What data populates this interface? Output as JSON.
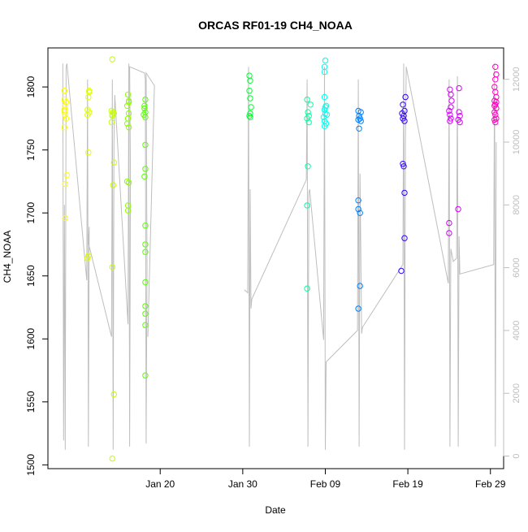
{
  "chart_data": {
    "type": "scatter",
    "title": "ORCAS RF01-19 CH4_NOAA",
    "xlabel": "Date",
    "ylabel": "CH4_NOAA",
    "x_unit": "days since Jan 20",
    "xlim": [
      -13.6,
      41.6
    ],
    "ylim": [
      1497,
      1831
    ],
    "x_ticks": [
      {
        "value": 0,
        "label": "Jan 20"
      },
      {
        "value": 10,
        "label": "Jan 30"
      },
      {
        "value": 20,
        "label": "Feb 09"
      },
      {
        "value": 30,
        "label": "Feb 19"
      },
      {
        "value": 40,
        "label": "Feb 29"
      }
    ],
    "y_ticks": [
      1500,
      1550,
      1600,
      1650,
      1700,
      1750,
      1800
    ],
    "right_axis": {
      "range": [
        -400,
        13000
      ],
      "ticks": [
        0,
        2000,
        4000,
        6000,
        8000,
        10000,
        12000
      ],
      "color": "#bebebe"
    },
    "grid": false,
    "series": [
      {
        "color": "#ffff00",
        "points": [
          [
            -11.6,
            1797
          ],
          [
            -11.6,
            1790
          ],
          [
            -11.5,
            1785
          ],
          [
            -11.6,
            1780
          ],
          [
            -11.5,
            1778
          ],
          [
            -11.4,
            1775
          ],
          [
            -11.6,
            1768
          ],
          [
            -11.5,
            1723
          ],
          [
            -11.3,
            1730
          ],
          [
            -11.5,
            1696
          ],
          [
            -11.6,
            1782
          ],
          [
            -11.4,
            1788
          ]
        ]
      },
      {
        "color": "#dfff00",
        "points": [
          [
            -8.6,
            1797
          ],
          [
            -8.7,
            1792
          ],
          [
            -8.8,
            1782
          ],
          [
            -8.6,
            1780
          ],
          [
            -8.8,
            1778
          ],
          [
            -8.7,
            1748
          ],
          [
            -8.7,
            1666
          ],
          [
            -8.8,
            1664
          ],
          [
            -8.6,
            1796
          ]
        ]
      },
      {
        "color": "#c5ff00",
        "points": [
          [
            -5.8,
            1822
          ],
          [
            -5.9,
            1781
          ],
          [
            -5.7,
            1780
          ],
          [
            -5.8,
            1778
          ],
          [
            -5.8,
            1777
          ],
          [
            -5.9,
            1772
          ],
          [
            -5.6,
            1740
          ],
          [
            -5.7,
            1722
          ],
          [
            -5.8,
            1657
          ],
          [
            -5.6,
            1556
          ],
          [
            -5.8,
            1505
          ],
          [
            -5.6,
            1779
          ]
        ]
      },
      {
        "color": "#8fff00",
        "points": [
          [
            -3.9,
            1794
          ],
          [
            -3.8,
            1789
          ],
          [
            -4.0,
            1785
          ],
          [
            -3.8,
            1779
          ],
          [
            -3.9,
            1775
          ],
          [
            -4.0,
            1771
          ],
          [
            -3.8,
            1768
          ],
          [
            -3.8,
            1724
          ],
          [
            -4.0,
            1725
          ],
          [
            -3.9,
            1706
          ],
          [
            -3.9,
            1702
          ],
          [
            -3.8,
            1788
          ]
        ]
      },
      {
        "color": "#59ff00",
        "points": [
          [
            -1.8,
            1790
          ],
          [
            -1.9,
            1785
          ],
          [
            -1.8,
            1780
          ],
          [
            -2.0,
            1778
          ],
          [
            -1.8,
            1776
          ],
          [
            -1.8,
            1754
          ],
          [
            -1.8,
            1735
          ],
          [
            -1.9,
            1729
          ],
          [
            -1.8,
            1690
          ],
          [
            -1.8,
            1675
          ],
          [
            -1.8,
            1669
          ],
          [
            -1.8,
            1645
          ],
          [
            -1.8,
            1626
          ],
          [
            -1.8,
            1620
          ],
          [
            -1.8,
            1611
          ],
          [
            -1.8,
            1571
          ],
          [
            -1.9,
            1783
          ]
        ]
      },
      {
        "color": "#00ff2e",
        "points": [
          [
            10.8,
            1809
          ],
          [
            10.9,
            1805
          ],
          [
            10.8,
            1797
          ],
          [
            10.9,
            1791
          ],
          [
            11.0,
            1784
          ],
          [
            10.9,
            1779
          ],
          [
            10.8,
            1777
          ],
          [
            10.9,
            1776
          ]
        ]
      },
      {
        "color": "#00ffa0",
        "points": [
          [
            17.8,
            1790
          ],
          [
            18.2,
            1786
          ],
          [
            17.9,
            1780
          ],
          [
            18.0,
            1777
          ],
          [
            17.8,
            1775
          ],
          [
            18.0,
            1772
          ],
          [
            17.9,
            1737
          ],
          [
            17.8,
            1706
          ],
          [
            17.8,
            1640
          ]
        ]
      },
      {
        "color": "#00ffef",
        "points": [
          [
            20.0,
            1821
          ],
          [
            19.9,
            1816
          ],
          [
            19.9,
            1812
          ],
          [
            19.9,
            1792
          ],
          [
            20.1,
            1785
          ],
          [
            19.9,
            1782
          ],
          [
            20.0,
            1779
          ],
          [
            19.8,
            1776
          ],
          [
            19.9,
            1773
          ],
          [
            20.1,
            1771
          ],
          [
            19.9,
            1769
          ],
          [
            20.0,
            1784
          ],
          [
            20.2,
            1778
          ]
        ]
      },
      {
        "color": "#0080ff",
        "points": [
          [
            24.0,
            1781
          ],
          [
            24.3,
            1780
          ],
          [
            24.1,
            1777
          ],
          [
            24.2,
            1775
          ],
          [
            24.0,
            1774
          ],
          [
            24.3,
            1773
          ],
          [
            24.1,
            1767
          ],
          [
            24.0,
            1710
          ],
          [
            24.0,
            1703
          ],
          [
            24.2,
            1700
          ],
          [
            24.2,
            1642
          ],
          [
            24.0,
            1624
          ]
        ]
      },
      {
        "color": "#3300ff",
        "points": [
          [
            29.7,
            1792
          ],
          [
            29.4,
            1786
          ],
          [
            29.6,
            1781
          ],
          [
            29.3,
            1779
          ],
          [
            29.5,
            1777
          ],
          [
            29.4,
            1775
          ],
          [
            29.6,
            1773
          ],
          [
            29.4,
            1739
          ],
          [
            29.5,
            1737
          ],
          [
            29.6,
            1716
          ],
          [
            29.6,
            1680
          ],
          [
            29.2,
            1654
          ]
        ]
      },
      {
        "color": "#d900ff",
        "points": [
          [
            35.1,
            1798
          ],
          [
            35.2,
            1794
          ],
          [
            35.3,
            1789
          ],
          [
            35.2,
            1784
          ],
          [
            35.0,
            1781
          ],
          [
            35.1,
            1778
          ],
          [
            35.2,
            1775
          ],
          [
            35.1,
            1773
          ],
          [
            36.2,
            1799
          ],
          [
            36.2,
            1780
          ],
          [
            36.3,
            1777
          ],
          [
            36.1,
            1774
          ],
          [
            36.3,
            1772
          ],
          [
            35.0,
            1692
          ],
          [
            35.0,
            1684
          ],
          [
            36.1,
            1703
          ]
        ]
      },
      {
        "color": "#ff00bf",
        "points": [
          [
            40.6,
            1816
          ],
          [
            40.7,
            1810
          ],
          [
            40.6,
            1806
          ],
          [
            40.5,
            1800
          ],
          [
            40.6,
            1796
          ],
          [
            40.7,
            1792
          ],
          [
            40.5,
            1789
          ],
          [
            40.6,
            1786
          ],
          [
            40.7,
            1783
          ],
          [
            40.5,
            1780
          ],
          [
            40.6,
            1778
          ],
          [
            40.7,
            1775
          ],
          [
            40.6,
            1772
          ],
          [
            40.5,
            1785
          ],
          [
            40.7,
            1788
          ],
          [
            40.5,
            1774
          ]
        ]
      }
    ],
    "altitude_trace": {
      "color": "#bebebe",
      "segments": [
        [
          [
            -11.8,
            12500
          ],
          [
            -11.7,
            500
          ],
          [
            -11.6,
            8000
          ],
          [
            -11.5,
            200
          ],
          [
            -11.4,
            12400
          ],
          [
            -11.3,
            12500
          ],
          [
            -8.9,
            5600
          ],
          [
            -8.8,
            12000
          ],
          [
            -8.7,
            300
          ],
          [
            -8.6,
            7300
          ],
          [
            -8.7,
            6800
          ],
          [
            -5.9,
            3800
          ],
          [
            -5.8,
            12000
          ],
          [
            -5.7,
            200
          ],
          [
            -5.6,
            10000
          ],
          [
            -5.5,
            11500
          ],
          [
            -3.9,
            4200
          ],
          [
            -3.8,
            12500
          ],
          [
            -3.7,
            300
          ],
          [
            -3.6,
            9000
          ],
          [
            -3.7,
            12400
          ],
          [
            -1.9,
            12200
          ],
          [
            -1.8,
            12000
          ],
          [
            -1.7,
            400
          ],
          [
            -1.6,
            6000
          ],
          [
            -1.7,
            12200
          ],
          [
            -0.7,
            11800
          ],
          [
            -1.5,
            3800
          ]
        ],
        [
          [
            10.2,
            5300
          ],
          [
            10.6,
            5200
          ],
          [
            10.7,
            12400
          ],
          [
            10.8,
            300
          ],
          [
            10.9,
            8500
          ],
          [
            11.0,
            4700
          ],
          [
            11.1,
            5000
          ],
          [
            17.7,
            8800
          ],
          [
            17.8,
            12000
          ],
          [
            17.9,
            300
          ],
          [
            18.0,
            8400
          ],
          [
            18.1,
            8500
          ],
          [
            19.8,
            3700
          ],
          [
            19.9,
            12400
          ],
          [
            20.0,
            200
          ],
          [
            20.1,
            3000
          ],
          [
            23.9,
            4000
          ],
          [
            24.0,
            12000
          ],
          [
            24.1,
            300
          ],
          [
            24.2,
            9000
          ],
          [
            24.4,
            3900
          ],
          [
            24.5,
            4100
          ],
          [
            29.4,
            6100
          ],
          [
            29.5,
            12500
          ],
          [
            29.6,
            200
          ],
          [
            29.7,
            10000
          ],
          [
            29.8,
            12400
          ],
          [
            34.9,
            5500
          ],
          [
            35.0,
            12000
          ],
          [
            35.1,
            300
          ],
          [
            35.2,
            6600
          ],
          [
            35.5,
            6200
          ],
          [
            35.9,
            6300
          ],
          [
            36.0,
            12100
          ],
          [
            36.1,
            300
          ],
          [
            36.2,
            7000
          ],
          [
            36.3,
            5800
          ],
          [
            40.4,
            6100
          ],
          [
            40.5,
            12500
          ],
          [
            40.6,
            300
          ],
          [
            40.7,
            10000
          ]
        ]
      ]
    }
  }
}
